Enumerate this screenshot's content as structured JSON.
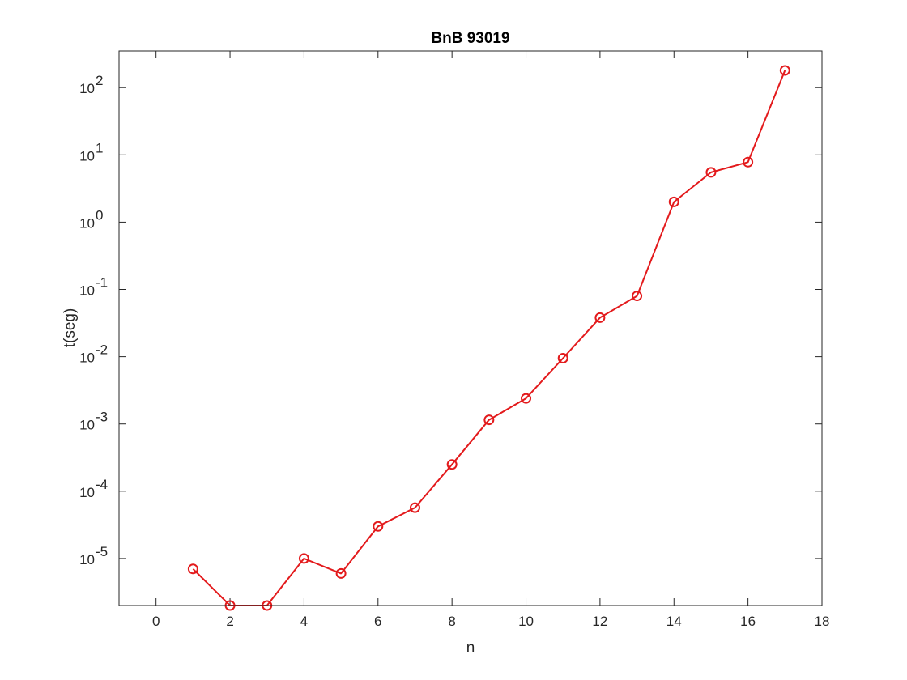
{
  "chart_data": {
    "type": "line",
    "title": "BnB 93019",
    "xlabel": "n",
    "ylabel": "t(seg)",
    "xlim": [
      -1,
      18
    ],
    "ylim": [
      2e-06,
      350
    ],
    "yscale": "log",
    "grid": false,
    "x_ticks": [
      0,
      2,
      4,
      6,
      8,
      10,
      12,
      14,
      16,
      18
    ],
    "x_tick_labels": [
      "0",
      "2",
      "4",
      "6",
      "8",
      "10",
      "12",
      "14",
      "16",
      "18"
    ],
    "y_ticks": [
      -5,
      -4,
      -3,
      -2,
      -1,
      0,
      1,
      2
    ],
    "y_tick_labels": [
      "-5",
      "-4",
      "-3",
      "-2",
      "-1",
      "0",
      "1",
      "2"
    ],
    "y_tick_base": "10",
    "series": [
      {
        "color": "#e31a1c",
        "marker": "circle",
        "x": [
          1,
          2,
          3,
          4,
          5,
          6,
          7,
          8,
          9,
          10,
          11,
          12,
          13,
          14,
          15,
          16,
          17
        ],
        "y": [
          7e-06,
          2e-06,
          2e-06,
          1e-05,
          6e-06,
          3e-05,
          5.7e-05,
          0.00025,
          0.00115,
          0.0024,
          0.0095,
          0.038,
          0.08,
          2.0,
          5.5,
          7.8,
          180
        ]
      }
    ]
  }
}
